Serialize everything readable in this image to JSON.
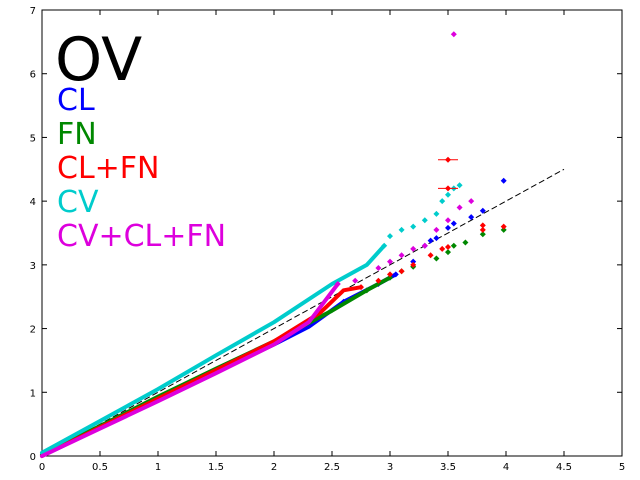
{
  "chart_data": {
    "type": "scatter",
    "title": "OV",
    "xlabel": "",
    "ylabel": "",
    "xlim": [
      0,
      5
    ],
    "ylim": [
      0,
      7
    ],
    "x_ticks": [
      "0",
      "0.5",
      "1",
      "1.5",
      "2",
      "2.5",
      "3",
      "3.5",
      "4",
      "4.5",
      "5"
    ],
    "y_ticks": [
      "0",
      "1",
      "2",
      "3",
      "4",
      "5",
      "6",
      "7"
    ],
    "grid": false,
    "legend_placement": "top-left",
    "reference_line": {
      "style": "dashed",
      "color": "#000000",
      "from": [
        0,
        0
      ],
      "to": [
        4.5,
        4.5
      ]
    },
    "series": [
      {
        "name": "CL",
        "color": "#0000ff",
        "points": [
          [
            2.6,
            2.42
          ],
          [
            2.9,
            2.7
          ],
          [
            3.05,
            2.85
          ],
          [
            3.2,
            3.05
          ],
          [
            3.3,
            3.3
          ],
          [
            3.35,
            3.38
          ],
          [
            3.4,
            3.42
          ],
          [
            3.5,
            3.58
          ],
          [
            3.55,
            3.65
          ],
          [
            3.7,
            3.75
          ],
          [
            3.8,
            3.85
          ],
          [
            3.98,
            4.32
          ]
        ],
        "curve": [
          [
            0,
            0
          ],
          [
            0.5,
            0.44
          ],
          [
            1,
            0.88
          ],
          [
            1.5,
            1.32
          ],
          [
            2,
            1.75
          ],
          [
            2.3,
            2.03
          ],
          [
            2.6,
            2.42
          ],
          [
            2.9,
            2.7
          ],
          [
            3.05,
            2.85
          ]
        ]
      },
      {
        "name": "FN",
        "color": "#008800",
        "points": [
          [
            2.8,
            2.6
          ],
          [
            3.0,
            2.8
          ],
          [
            3.1,
            2.9
          ],
          [
            3.2,
            2.97
          ],
          [
            3.4,
            3.1
          ],
          [
            3.5,
            3.2
          ],
          [
            3.55,
            3.3
          ],
          [
            3.65,
            3.35
          ],
          [
            3.8,
            3.48
          ],
          [
            3.98,
            3.55
          ]
        ],
        "curve": [
          [
            0,
            0.02
          ],
          [
            0.5,
            0.47
          ],
          [
            1,
            0.93
          ],
          [
            1.5,
            1.37
          ],
          [
            2,
            1.8
          ],
          [
            2.5,
            2.28
          ],
          [
            2.8,
            2.6
          ],
          [
            3.0,
            2.8
          ]
        ]
      },
      {
        "name": "CL+FN",
        "color": "#ff0000",
        "points": [
          [
            2.75,
            2.65
          ],
          [
            2.9,
            2.75
          ],
          [
            3.0,
            2.85
          ],
          [
            3.1,
            2.9
          ],
          [
            3.2,
            3.0
          ],
          [
            3.35,
            3.15
          ],
          [
            3.45,
            3.25
          ],
          [
            3.5,
            3.28
          ],
          [
            3.8,
            3.55
          ],
          [
            3.8,
            3.62
          ],
          [
            3.98,
            3.6
          ],
          [
            3.5,
            4.2
          ],
          [
            3.5,
            4.65
          ]
        ],
        "curve": [
          [
            0,
            0
          ],
          [
            0.5,
            0.45
          ],
          [
            1,
            0.9
          ],
          [
            1.5,
            1.35
          ],
          [
            2,
            1.8
          ],
          [
            2.4,
            2.25
          ],
          [
            2.6,
            2.6
          ],
          [
            2.75,
            2.65
          ]
        ]
      },
      {
        "name": "CV",
        "color": "#00cccc",
        "points": [
          [
            2.95,
            3.3
          ],
          [
            3.0,
            3.45
          ],
          [
            3.1,
            3.55
          ],
          [
            3.2,
            3.6
          ],
          [
            3.3,
            3.7
          ],
          [
            3.4,
            3.8
          ],
          [
            3.45,
            4.0
          ],
          [
            3.5,
            4.1
          ],
          [
            3.55,
            4.2
          ],
          [
            3.6,
            4.25
          ]
        ],
        "curve": [
          [
            0,
            0.05
          ],
          [
            0.5,
            0.55
          ],
          [
            1,
            1.05
          ],
          [
            1.5,
            1.58
          ],
          [
            2,
            2.1
          ],
          [
            2.5,
            2.7
          ],
          [
            2.8,
            3.0
          ],
          [
            2.95,
            3.3
          ]
        ]
      },
      {
        "name": "CV+CL+FN",
        "color": "#dd00dd",
        "points": [
          [
            2.55,
            2.7
          ],
          [
            2.7,
            2.75
          ],
          [
            2.9,
            2.95
          ],
          [
            3.0,
            3.05
          ],
          [
            3.1,
            3.15
          ],
          [
            3.2,
            3.25
          ],
          [
            3.3,
            3.3
          ],
          [
            3.4,
            3.55
          ],
          [
            3.5,
            3.7
          ],
          [
            3.6,
            3.9
          ],
          [
            3.7,
            4.0
          ],
          [
            3.55,
            6.62
          ]
        ],
        "curve": [
          [
            0,
            0
          ],
          [
            0.5,
            0.43
          ],
          [
            1,
            0.86
          ],
          [
            1.5,
            1.3
          ],
          [
            2,
            1.75
          ],
          [
            2.3,
            2.1
          ],
          [
            2.55,
            2.7
          ]
        ]
      }
    ]
  }
}
